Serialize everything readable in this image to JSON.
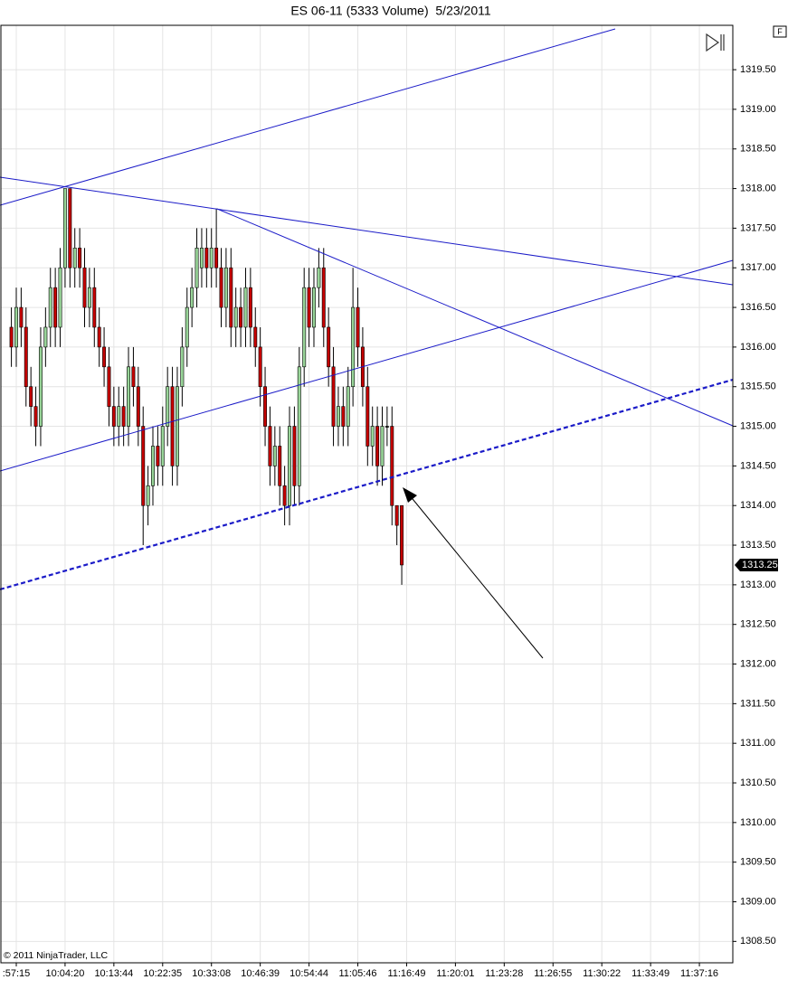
{
  "chart_data": {
    "type": "candlestick",
    "title": "ES 06-11 (5333 Volume)  5/23/2011",
    "copyright": "© 2011 NinjaTrader, LLC",
    "button": "F",
    "up_color": "#98d498",
    "down_color": "#c40000",
    "xlim": [
      -2.15,
      147.85
    ],
    "xticks": [
      {
        "value": 1,
        "label": ":57:15"
      },
      {
        "value": 11,
        "label": "10:04:20"
      },
      {
        "value": 21,
        "label": "10:13:44"
      },
      {
        "value": 31,
        "label": "10:22:35"
      },
      {
        "value": 41,
        "label": "10:33:08"
      },
      {
        "value": 51,
        "label": "10:46:39"
      },
      {
        "value": 61,
        "label": "10:54:44"
      },
      {
        "value": 71,
        "label": "11:05:46"
      },
      {
        "value": 81,
        "label": "11:16:49"
      },
      {
        "value": 91,
        "label": "11:20:01"
      },
      {
        "value": 101,
        "label": "11:23:28"
      },
      {
        "value": 111,
        "label": "11:26:55"
      },
      {
        "value": 121,
        "label": "11:30:22"
      },
      {
        "value": 131,
        "label": "11:33:49"
      },
      {
        "value": 141,
        "label": "11:37:16"
      }
    ],
    "ylim": [
      1308.23,
      1320.06
    ],
    "yticks": [
      {
        "value": 1308.5,
        "label": "1308.50"
      },
      {
        "value": 1309,
        "label": "1309.00"
      },
      {
        "value": 1309.5,
        "label": "1309.50"
      },
      {
        "value": 1310,
        "label": "1310.00"
      },
      {
        "value": 1310.5,
        "label": "1310.50"
      },
      {
        "value": 1311,
        "label": "1311.00"
      },
      {
        "value": 1311.5,
        "label": "1311.50"
      },
      {
        "value": 1312,
        "label": "1312.00"
      },
      {
        "value": 1312.5,
        "label": "1312.50"
      },
      {
        "value": 1313,
        "label": "1313.00"
      },
      {
        "value": 1313.5,
        "label": "1313.50"
      },
      {
        "value": 1314,
        "label": "1314.00"
      },
      {
        "value": 1314.5,
        "label": "1314.50"
      },
      {
        "value": 1315,
        "label": "1315.00"
      },
      {
        "value": 1315.5,
        "label": "1315.50"
      },
      {
        "value": 1316,
        "label": "1316.00"
      },
      {
        "value": 1316.5,
        "label": "1316.50"
      },
      {
        "value": 1317,
        "label": "1317.00"
      },
      {
        "value": 1317.5,
        "label": "1317.50"
      },
      {
        "value": 1318,
        "label": "1318.00"
      },
      {
        "value": 1318.5,
        "label": "1318.50"
      },
      {
        "value": 1319,
        "label": "1319.00"
      },
      {
        "value": 1319.5,
        "label": "1319.50"
      }
    ],
    "grid": true,
    "last_price": {
      "value": 1313.25,
      "label": "1313.25"
    },
    "open": [
      1316.25,
      1316.0,
      1316.5,
      1316.25,
      1315.5,
      1315.25,
      1315.0,
      1316.0,
      1316.25,
      1316.75,
      1316.25,
      1317.0,
      1318.0,
      1317.0,
      1317.25,
      1317.0,
      1316.5,
      1316.75,
      1316.25,
      1316.0,
      1315.75,
      1315.25,
      1315.0,
      1315.25,
      1315.0,
      1315.75,
      1315.5,
      1315.0,
      1314.0,
      1314.25,
      1314.75,
      1314.5,
      1315.0,
      1315.5,
      1314.5,
      1315.5,
      1316.0,
      1316.5,
      1316.75,
      1317.0,
      1317.25,
      1317.0,
      1317.25,
      1317.0,
      1316.5,
      1317.0,
      1316.25,
      1316.5,
      1316.25,
      1316.75,
      1316.25,
      1316.0,
      1315.5,
      1315.0,
      1314.5,
      1314.75,
      1314.25,
      1314.0,
      1315.0,
      1314.25,
      1315.75,
      1316.75,
      1316.25,
      1316.75,
      1317.0,
      1316.25,
      1315.75,
      1315.0,
      1315.25,
      1315.0,
      1315.5,
      1316.5,
      1316.0,
      1315.5,
      1314.75,
      1315.0,
      1314.5,
      1315.0,
      1315.0,
      1314.0,
      1314.0
    ],
    "high": [
      1316.5,
      1316.75,
      1316.75,
      1316.5,
      1315.75,
      1315.5,
      1316.25,
      1316.5,
      1317.0,
      1317.0,
      1317.25,
      1318.0,
      1318.0,
      1317.5,
      1317.5,
      1317.25,
      1317.0,
      1317.0,
      1316.5,
      1316.25,
      1316.0,
      1315.5,
      1315.5,
      1315.5,
      1316.0,
      1316.0,
      1315.75,
      1315.25,
      1314.5,
      1315.0,
      1315.0,
      1315.25,
      1315.75,
      1315.75,
      1315.75,
      1316.25,
      1316.75,
      1317.0,
      1317.5,
      1317.5,
      1317.5,
      1317.5,
      1317.75,
      1317.25,
      1317.25,
      1317.25,
      1316.75,
      1316.75,
      1317.0,
      1317.0,
      1316.5,
      1316.25,
      1315.75,
      1315.25,
      1315.0,
      1315.0,
      1314.5,
      1315.25,
      1315.25,
      1316.0,
      1317.0,
      1317.0,
      1317.0,
      1317.25,
      1317.25,
      1316.5,
      1316.0,
      1315.5,
      1315.5,
      1315.75,
      1317.0,
      1316.75,
      1316.25,
      1315.75,
      1315.25,
      1315.25,
      1315.25,
      1315.25,
      1315.25,
      1314.0,
      1314.0
    ],
    "low": [
      1315.75,
      1315.75,
      1316.0,
      1315.25,
      1315.0,
      1314.75,
      1314.75,
      1315.75,
      1316.0,
      1316.0,
      1316.0,
      1316.75,
      1316.75,
      1316.75,
      1316.75,
      1316.25,
      1316.25,
      1316.0,
      1315.75,
      1315.5,
      1315.0,
      1314.75,
      1314.75,
      1314.75,
      1314.75,
      1315.25,
      1314.75,
      1313.5,
      1313.75,
      1314.0,
      1314.25,
      1314.25,
      1314.75,
      1314.25,
      1314.25,
      1315.25,
      1315.75,
      1316.25,
      1316.5,
      1316.75,
      1316.75,
      1316.75,
      1316.75,
      1316.25,
      1316.25,
      1316.0,
      1316.0,
      1316.0,
      1316.0,
      1316.0,
      1315.75,
      1315.25,
      1314.75,
      1314.25,
      1314.25,
      1314.0,
      1313.75,
      1313.75,
      1314.0,
      1314.0,
      1315.5,
      1316.0,
      1316.0,
      1316.5,
      1316.0,
      1315.5,
      1314.75,
      1314.75,
      1314.75,
      1314.75,
      1315.25,
      1315.75,
      1315.25,
      1314.5,
      1314.5,
      1314.25,
      1314.25,
      1314.75,
      1313.75,
      1313.5,
      1313.0
    ],
    "close": [
      1316.0,
      1316.5,
      1316.25,
      1315.5,
      1315.25,
      1315.0,
      1316.0,
      1316.25,
      1316.75,
      1316.25,
      1317.0,
      1318.0,
      1317.0,
      1317.25,
      1317.0,
      1316.5,
      1316.75,
      1316.25,
      1316.0,
      1315.75,
      1315.25,
      1315.0,
      1315.25,
      1315.0,
      1315.75,
      1315.5,
      1315.0,
      1314.0,
      1314.25,
      1314.75,
      1314.5,
      1315.0,
      1315.5,
      1314.5,
      1315.5,
      1316.0,
      1316.5,
      1316.75,
      1317.25,
      1317.25,
      1317.0,
      1317.25,
      1317.0,
      1316.5,
      1317.0,
      1316.25,
      1316.5,
      1316.25,
      1316.75,
      1316.25,
      1316.0,
      1315.5,
      1315.0,
      1314.5,
      1314.75,
      1314.25,
      1314.0,
      1315.0,
      1314.25,
      1315.75,
      1316.75,
      1316.25,
      1316.75,
      1317.0,
      1316.25,
      1315.75,
      1315.0,
      1315.25,
      1315.0,
      1315.5,
      1316.5,
      1316.0,
      1315.5,
      1314.75,
      1315.0,
      1314.5,
      1315.0,
      1315.0,
      1314.0,
      1313.75,
      1313.25
    ]
  }
}
